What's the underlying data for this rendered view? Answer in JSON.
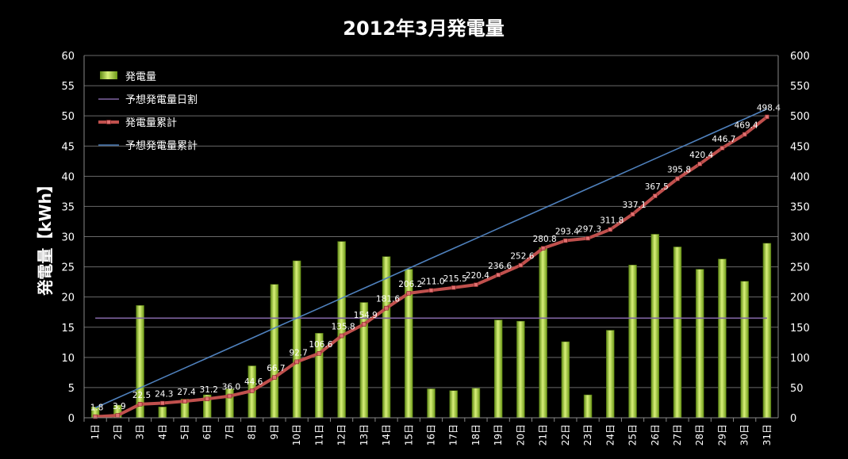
{
  "chart_data": {
    "type": "bar",
    "title": "2012年3月発電量",
    "ylabel": "発電量【kWh】",
    "y2label": "",
    "categories": [
      "1日",
      "2日",
      "3日",
      "4日",
      "5日",
      "6日",
      "7日",
      "8日",
      "9日",
      "10日",
      "11日",
      "12日",
      "13日",
      "14日",
      "15日",
      "16日",
      "17日",
      "18日",
      "19日",
      "20日",
      "21日",
      "22日",
      "23日",
      "24日",
      "25日",
      "26日",
      "27日",
      "28日",
      "29日",
      "30日",
      "31日"
    ],
    "ylim": [
      0,
      60
    ],
    "y_ticks": [
      "0",
      "5",
      "10",
      "15",
      "20",
      "25",
      "30",
      "35",
      "40",
      "45",
      "50",
      "55",
      "60"
    ],
    "y2lim": [
      0,
      600
    ],
    "y2_ticks": [
      "0",
      "50",
      "100",
      "150",
      "200",
      "250",
      "300",
      "350",
      "400",
      "450",
      "500",
      "550",
      "600"
    ],
    "grid": true,
    "legend_position": "top-left",
    "series": [
      {
        "name": "発電量",
        "type": "bar",
        "axis": "left",
        "color": "#9acd32",
        "values": [
          1.8,
          2.1,
          18.6,
          1.8,
          3.1,
          3.8,
          4.8,
          8.6,
          22.1,
          26.0,
          14.0,
          29.2,
          19.1,
          26.7,
          24.6,
          4.8,
          4.5,
          4.9,
          16.2,
          16.0,
          28.2,
          12.6,
          3.8,
          14.5,
          25.3,
          30.4,
          28.3,
          24.6,
          26.3,
          22.6,
          28.9
        ]
      },
      {
        "name": "予想発電量日割",
        "type": "line",
        "axis": "left",
        "color": "#8064a2",
        "values": [
          16.5,
          16.5,
          16.5,
          16.5,
          16.5,
          16.5,
          16.5,
          16.5,
          16.5,
          16.5,
          16.5,
          16.5,
          16.5,
          16.5,
          16.5,
          16.5,
          16.5,
          16.5,
          16.5,
          16.5,
          16.5,
          16.5,
          16.5,
          16.5,
          16.5,
          16.5,
          16.5,
          16.5,
          16.5,
          16.5,
          16.5
        ]
      },
      {
        "name": "発電量累計",
        "type": "line",
        "axis": "right",
        "color": "#c0504d",
        "values": [
          1.8,
          3.9,
          22.5,
          24.3,
          27.4,
          31.2,
          36.0,
          44.6,
          66.7,
          92.7,
          106.6,
          135.8,
          154.9,
          181.6,
          206.2,
          211.0,
          215.5,
          220.4,
          236.6,
          252.6,
          280.8,
          293.4,
          297.3,
          311.8,
          337.1,
          367.5,
          395.8,
          420.4,
          446.7,
          469.4,
          498.4
        ],
        "labels": [
          "1.8",
          "3.9",
          "22.5",
          "24.3",
          "27.4",
          "31.2",
          "36.0",
          "44.6",
          "66.7",
          "92.7",
          "106.6",
          "135.8",
          "154.9",
          "181.6",
          "206.2",
          "211.0",
          "215.5",
          "220.4",
          "236.6",
          "252.6",
          "280.8",
          "293.4",
          "297.3",
          "311.8",
          "337.1",
          "367.5",
          "395.8",
          "420.4",
          "446.7",
          "469.4",
          "498.4"
        ]
      },
      {
        "name": "予想発電量累計",
        "type": "line",
        "axis": "right",
        "color": "#4f81bd",
        "values": [
          16.5,
          33.0,
          49.5,
          66.0,
          82.5,
          99.0,
          115.5,
          132.0,
          148.5,
          165.0,
          181.5,
          198.0,
          214.5,
          231.0,
          247.5,
          264.0,
          280.5,
          297.0,
          313.5,
          330.0,
          346.5,
          363.0,
          379.5,
          396.0,
          412.5,
          429.0,
          445.5,
          462.0,
          478.5,
          495.0,
          511.5
        ]
      }
    ]
  }
}
